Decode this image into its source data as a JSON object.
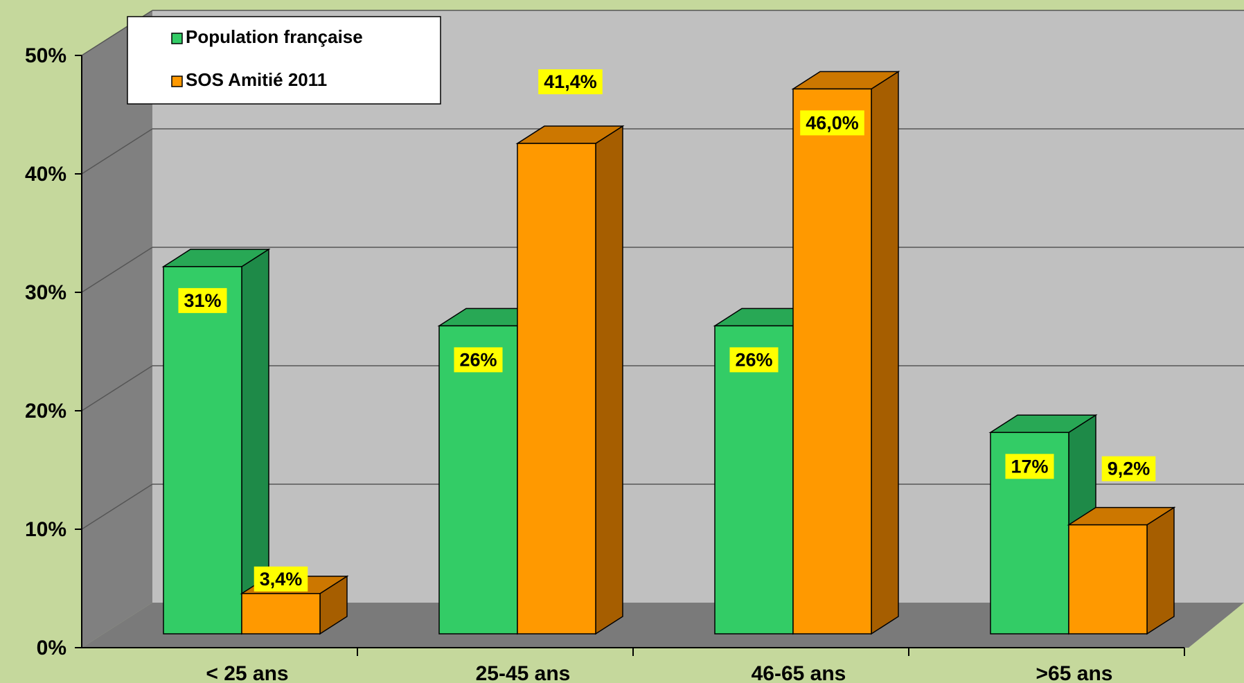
{
  "chart_data": {
    "type": "bar",
    "categories": [
      "< 25 ans",
      "25-45 ans",
      "46-65 ans",
      ">65 ans"
    ],
    "series": [
      {
        "name": "Population française",
        "values": [
          31,
          26,
          26,
          17
        ],
        "labels": [
          "31%",
          "26%",
          "26%",
          "17%"
        ],
        "color": "#33cc66",
        "side_color": "#1e8a48",
        "top_color": "#28a855"
      },
      {
        "name": "SOS Amitié 2011",
        "values": [
          3.4,
          41.4,
          46.0,
          9.2
        ],
        "labels": [
          "3,4%",
          "41,4%",
          "46,0%",
          "9,2%"
        ],
        "color": "#ff9900",
        "side_color": "#a65e00",
        "top_color": "#cc7700"
      }
    ],
    "y_ticks": [
      "0%",
      "10%",
      "20%",
      "30%",
      "40%",
      "50%"
    ],
    "ylim": [
      0,
      50
    ],
    "grid": true,
    "legend_position": "top-left",
    "label_background": "#ffff00",
    "background": "#c5d89c",
    "wall_color": "#c0c0c0",
    "side_wall_color": "#808080"
  }
}
